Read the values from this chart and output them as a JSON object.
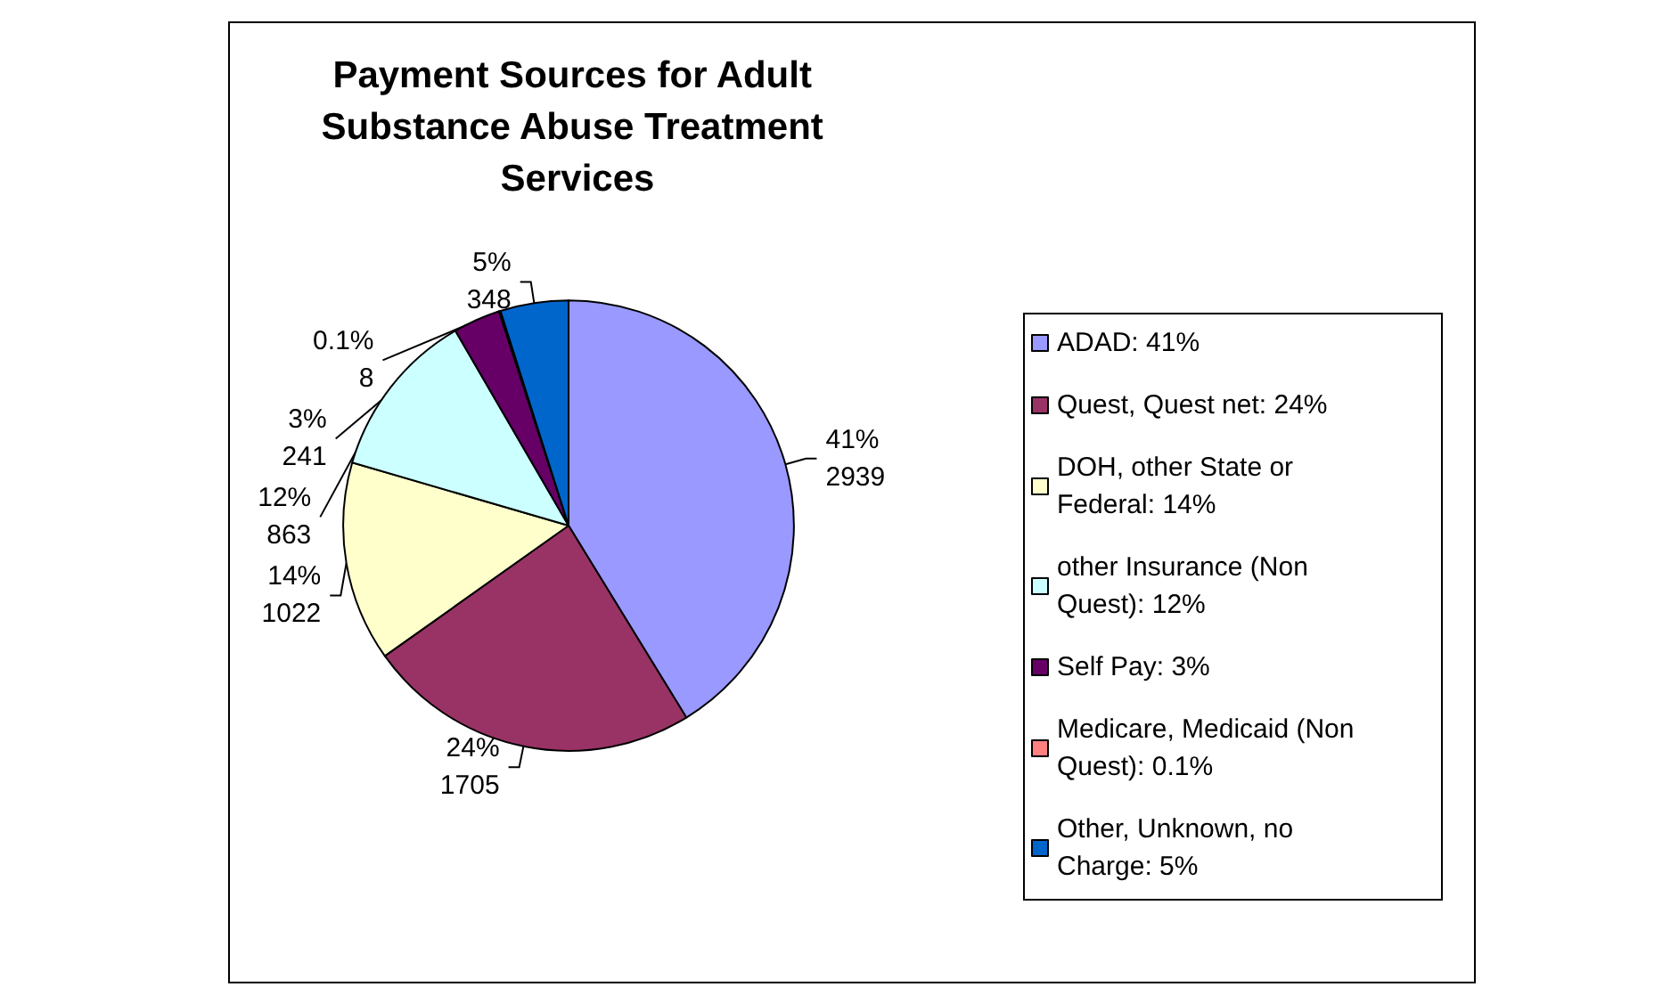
{
  "chart_data": {
    "type": "pie",
    "title": "Payment Sources for Adult Substance Abuse Treatment Services",
    "categories": [
      "ADAD: 41%",
      "Quest, Quest net: 24%",
      "DOH, other State or Federal: 14%",
      "other Insurance (Non Quest): 12%",
      "Self Pay: 3%",
      "Medicare, Medicaid (Non Quest): 0.1%",
      "Other, Unknown, no Charge: 5%"
    ],
    "values": [
      2939,
      1705,
      1022,
      863,
      241,
      8,
      348
    ],
    "colors": [
      "#9999ff",
      "#993366",
      "#ffffcc",
      "#ccffff",
      "#660066",
      "#ff8080",
      "#0066cc"
    ],
    "value_labels": [
      "41%\n2939",
      "24%\n1705",
      "14%\n1022",
      "12%\n863",
      "3%\n241",
      "0.1%\n8",
      "5%\n348"
    ],
    "legend": "right"
  }
}
